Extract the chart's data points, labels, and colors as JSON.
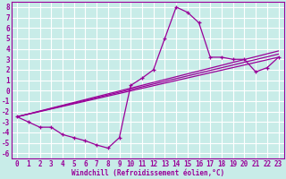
{
  "xlabel": "Windchill (Refroidissement éolien,°C)",
  "bg_color": "#c8ece8",
  "grid_color": "#ffffff",
  "line_color": "#990099",
  "xlim": [
    -0.5,
    23.5
  ],
  "ylim": [
    -6.5,
    8.5
  ],
  "xticks": [
    0,
    1,
    2,
    3,
    4,
    5,
    6,
    7,
    8,
    9,
    10,
    11,
    12,
    13,
    14,
    15,
    16,
    17,
    18,
    19,
    20,
    21,
    22,
    23
  ],
  "yticks": [
    -6,
    -5,
    -4,
    -3,
    -2,
    -1,
    0,
    1,
    2,
    3,
    4,
    5,
    6,
    7,
    8
  ],
  "line1_x": [
    0,
    1,
    2,
    3,
    4,
    5,
    6,
    7,
    8,
    9,
    10,
    11,
    12,
    13,
    14,
    15,
    16,
    17,
    18,
    19,
    20,
    21,
    22,
    23
  ],
  "line1_y": [
    -2.5,
    -3.0,
    -3.5,
    -3.5,
    -4.2,
    -4.5,
    -4.8,
    -5.2,
    -5.5,
    -4.5,
    0.5,
    1.2,
    2.0,
    5.0,
    8.0,
    7.5,
    6.5,
    3.2,
    3.2,
    3.0,
    3.0,
    1.8,
    2.2,
    3.2
  ],
  "line2_x": [
    0,
    23
  ],
  "line2_y": [
    -2.5,
    3.2
  ],
  "line3_x": [
    0,
    23
  ],
  "line3_y": [
    -2.5,
    3.5
  ],
  "line4_x": [
    0,
    23
  ],
  "line4_y": [
    -2.5,
    3.8
  ]
}
